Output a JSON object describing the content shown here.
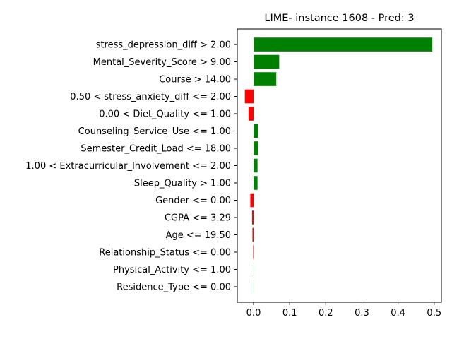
{
  "chart_data": {
    "type": "bar",
    "orientation": "horizontal",
    "title": "LIME- instance 1608 - Pred: 3",
    "xlabel": "",
    "ylabel": "",
    "xlim": [
      -0.045,
      0.52
    ],
    "xticks": [
      0.0,
      0.1,
      0.2,
      0.3,
      0.4,
      0.5
    ],
    "xtick_labels": [
      "0.0",
      "0.1",
      "0.2",
      "0.3",
      "0.4",
      "0.5"
    ],
    "grid": false,
    "legend": "none",
    "positive_color": "#008000",
    "negative_color": "#ff0000",
    "categories": [
      "stress_depression_diff > 2.00",
      "Mental_Severity_Score > 9.00",
      "Course > 14.00",
      "0.50 < stress_anxiety_diff <= 2.00",
      "0.00 < Diet_Quality <= 1.00",
      "Counseling_Service_Use <= 1.00",
      "Semester_Credit_Load <= 18.00",
      "1.00 < Extracurricular_Involvement <= 2.00",
      "Sleep_Quality > 1.00",
      "Gender <= 0.00",
      "CGPA <= 3.29",
      "Age <= 19.50",
      "Relationship_Status <= 0.00",
      "Physical_Activity <= 1.00",
      "Residence_Type <= 0.00"
    ],
    "values": [
      0.495,
      0.071,
      0.063,
      -0.024,
      -0.014,
      0.012,
      0.012,
      0.011,
      0.011,
      -0.009,
      -0.004,
      -0.003,
      -0.001,
      0.001,
      0.0
    ]
  }
}
